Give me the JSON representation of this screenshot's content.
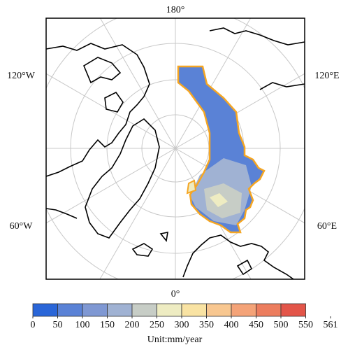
{
  "map": {
    "labels": {
      "top": "180°",
      "bottom": "0°",
      "left_upper": "120°W",
      "left_lower": "60°W",
      "right_upper": "120°E",
      "right_lower": "60°E"
    }
  },
  "colorbar": {
    "ticks": [
      0,
      50,
      100,
      150,
      200,
      250,
      300,
      350,
      400,
      450,
      500,
      550,
      561
    ],
    "colors": [
      "#2a66d8",
      "#5a82d6",
      "#7f98d3",
      "#a0b2d3",
      "#c7cdc6",
      "#eeecc2",
      "#f9e3a3",
      "#f8c790",
      "#f4a378",
      "#ec7d5e",
      "#e35549"
    ],
    "unit": "Unit:mm/year"
  }
}
